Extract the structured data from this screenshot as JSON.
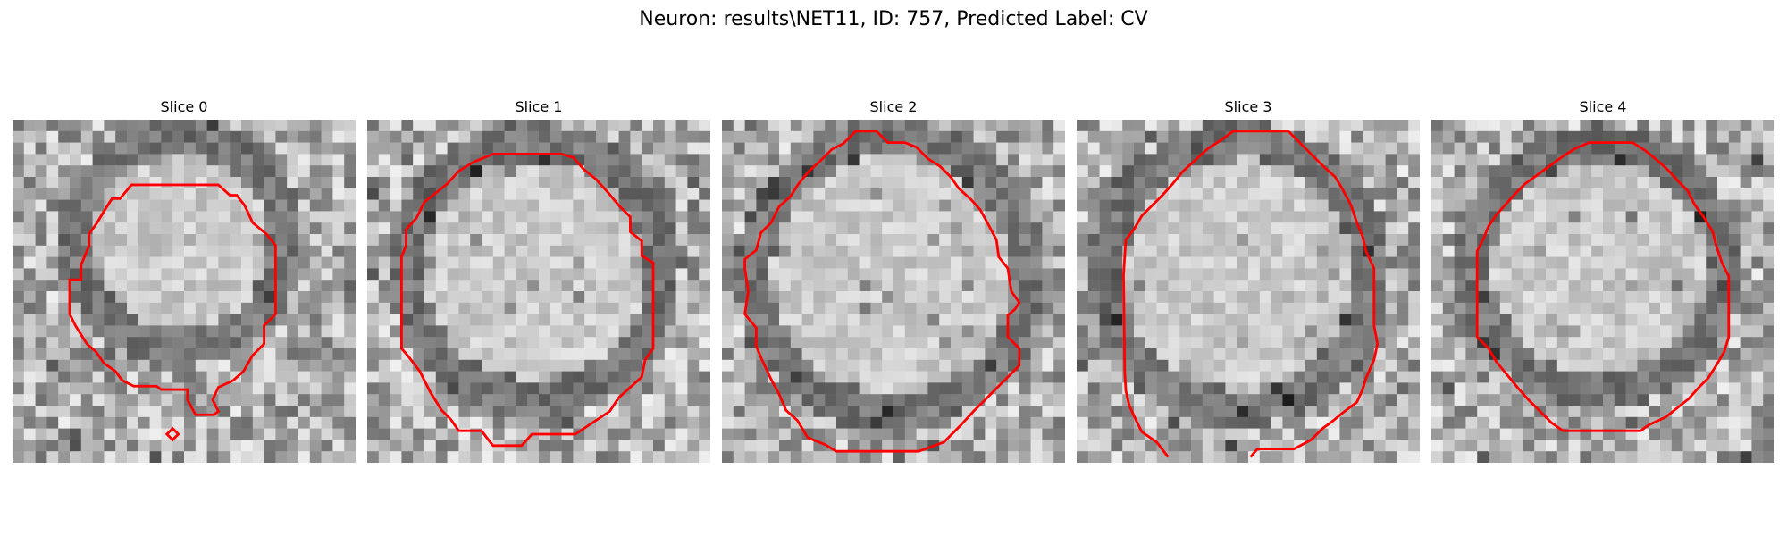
{
  "figure": {
    "title": "Neuron: results\\NET11, ID: 757, Predicted Label: CV"
  },
  "panels": [
    {
      "title": "Slice 0"
    },
    {
      "title": "Slice 1"
    },
    {
      "title": "Slice 2"
    },
    {
      "title": "Slice 3"
    },
    {
      "title": "Slice 4"
    }
  ],
  "colors": {
    "contour": "#ff0000",
    "background": "#ffffff"
  }
}
